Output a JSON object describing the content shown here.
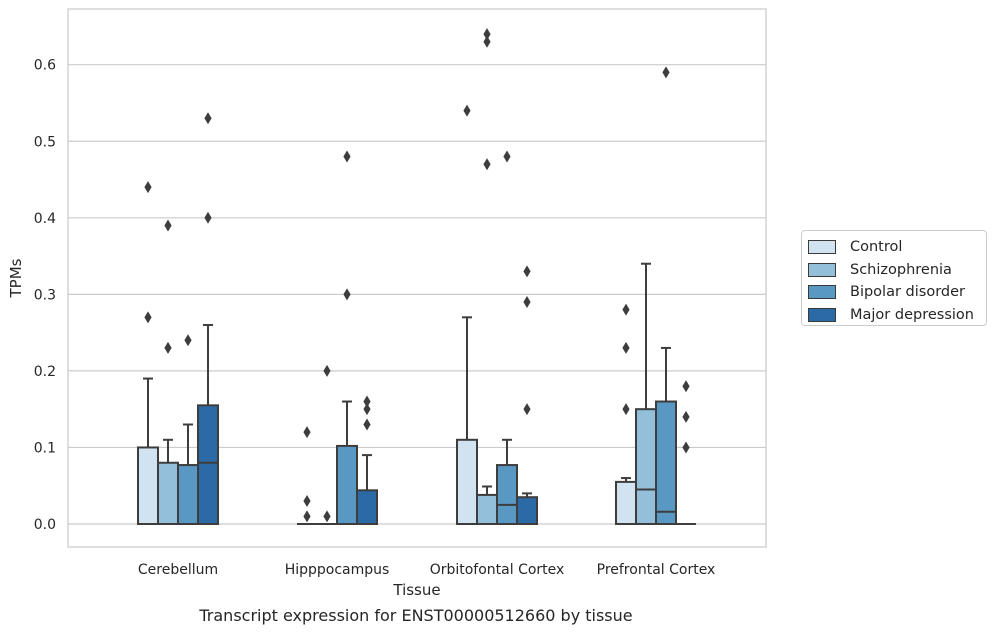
{
  "chart_data": {
    "type": "box",
    "title": "",
    "xlabel": "Tissue",
    "ylabel": "TPMs",
    "caption": "Transcript expression for ENST00000512660 by tissue",
    "ylim": [
      -0.032,
      0.675
    ],
    "yticks": [
      "0.0",
      "0.1",
      "0.2",
      "0.3",
      "0.4",
      "0.5",
      "0.6"
    ],
    "ytick_values": [
      0,
      0.1,
      0.2,
      0.3,
      0.4,
      0.5,
      0.6
    ],
    "grid": true,
    "legend_position": "right",
    "categories": [
      "Cerebellum",
      "Hipppocampus",
      "Orbitofontal Cortex",
      "Prefrontal Cortex"
    ],
    "series": [
      {
        "name": "Control",
        "color": "#d1e2f0",
        "boxes": [
          {
            "q1": 0,
            "median": 0,
            "q3": 0.1,
            "whisker_low": 0,
            "whisker_high": 0.19,
            "outliers": [
              0.27,
              0.44
            ]
          },
          {
            "q1": 0,
            "median": 0,
            "q3": 0,
            "whisker_low": 0,
            "whisker_high": 0,
            "outliers": [
              0.01,
              0.03,
              0.12
            ]
          },
          {
            "q1": 0,
            "median": 0,
            "q3": 0.11,
            "whisker_low": 0,
            "whisker_high": 0.27,
            "outliers": [
              0.54
            ]
          },
          {
            "q1": 0,
            "median": 0,
            "q3": 0.055,
            "whisker_low": 0,
            "whisker_high": 0.06,
            "outliers": [
              0.15,
              0.23,
              0.28
            ]
          }
        ]
      },
      {
        "name": "Schizophrenia",
        "color": "#93bfdb",
        "boxes": [
          {
            "q1": 0,
            "median": 0,
            "q3": 0.08,
            "whisker_low": 0,
            "whisker_high": 0.11,
            "outliers": [
              0.23,
              0.39
            ]
          },
          {
            "q1": 0,
            "median": 0,
            "q3": 0,
            "whisker_low": 0,
            "whisker_high": 0,
            "outliers": [
              0.01,
              0.2
            ]
          },
          {
            "q1": 0,
            "median": 0,
            "q3": 0.038,
            "whisker_low": 0,
            "whisker_high": 0.049,
            "outliers": [
              0.47,
              0.63,
              0.64
            ]
          },
          {
            "q1": 0,
            "median": 0.045,
            "q3": 0.15,
            "whisker_low": 0,
            "whisker_high": 0.34,
            "outliers": []
          }
        ]
      },
      {
        "name": "Bipolar disorder",
        "color": "#5a98c4",
        "boxes": [
          {
            "q1": 0,
            "median": 0,
            "q3": 0.077,
            "whisker_low": 0,
            "whisker_high": 0.13,
            "outliers": [
              0.24
            ]
          },
          {
            "q1": 0,
            "median": 0,
            "q3": 0.102,
            "whisker_low": 0,
            "whisker_high": 0.16,
            "outliers": [
              0.3,
              0.48
            ]
          },
          {
            "q1": 0,
            "median": 0.025,
            "q3": 0.077,
            "whisker_low": 0,
            "whisker_high": 0.11,
            "outliers": [
              0.48
            ]
          },
          {
            "q1": 0,
            "median": 0.016,
            "q3": 0.16,
            "whisker_low": 0,
            "whisker_high": 0.23,
            "outliers": [
              0.59
            ]
          }
        ]
      },
      {
        "name": "Major depression",
        "color": "#2c6aa6",
        "boxes": [
          {
            "q1": 0,
            "median": 0.08,
            "q3": 0.155,
            "whisker_low": 0,
            "whisker_high": 0.26,
            "outliers": [
              0.4,
              0.53
            ]
          },
          {
            "q1": 0,
            "median": 0,
            "q3": 0.044,
            "whisker_low": 0,
            "whisker_high": 0.09,
            "outliers": [
              0.13,
              0.15,
              0.16
            ]
          },
          {
            "q1": 0,
            "median": 0,
            "q3": 0.035,
            "whisker_low": 0,
            "whisker_high": 0.04,
            "outliers": [
              0.15,
              0.29,
              0.33
            ]
          },
          {
            "q1": 0,
            "median": 0,
            "q3": 0,
            "whisker_low": 0,
            "whisker_high": 0,
            "outliers": [
              0.1,
              0.14,
              0.18
            ]
          }
        ]
      }
    ]
  }
}
